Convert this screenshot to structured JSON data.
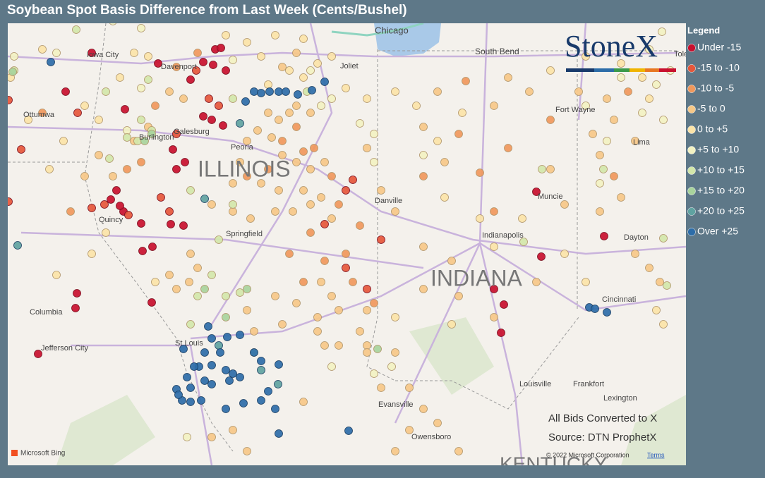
{
  "header": {
    "title": "Soybean Spot Basis Difference from Last Week (Cents/Bushel)"
  },
  "legend": {
    "title": "Legend",
    "items": [
      {
        "label": "Under -15",
        "color": "#c8102e"
      },
      {
        "label": "-15 to -10",
        "color": "#e5573b"
      },
      {
        "label": "-10 to -5",
        "color": "#f0985c"
      },
      {
        "label": "-5 to 0",
        "color": "#f6c888"
      },
      {
        "label": "0 to +5",
        "color": "#fbe4a8"
      },
      {
        "label": "+5 to +10",
        "color": "#f2f2c2"
      },
      {
        "label": "+10 to +15",
        "color": "#d2e7aa"
      },
      {
        "label": "+15 to +20",
        "color": "#a8d49c"
      },
      {
        "label": "+20 to +25",
        "color": "#5fa3a1"
      },
      {
        "label": "Over +25",
        "color": "#2d6da8"
      }
    ]
  },
  "logo": "StoneX",
  "map": {
    "labels": [
      "Chicago",
      "South Bend",
      "Iowa City",
      "Davenport",
      "Joliet",
      "Ottumwa",
      "Galesburg",
      "Burlington",
      "Peoria",
      "ILLINOIS",
      "Fort Wayne",
      "Lima",
      "Muncie",
      "Danville",
      "Quincy",
      "Springfield",
      "Indianapolis",
      "Dayton",
      "INDIANA",
      "Columbia",
      "Cincinnati",
      "Jefferson City",
      "St Louis",
      "Louisville",
      "Frankfort",
      "Lexington",
      "Evansville",
      "Owensboro",
      "KENTUCKY",
      "Toledo"
    ]
  },
  "notes": [
    "All Bids Converted to X",
    "Source: DTN ProphetX"
  ],
  "attribution": "© 2022 Microsoft Corporation",
  "terms": "Terms",
  "bing": "Microsoft Bing"
}
